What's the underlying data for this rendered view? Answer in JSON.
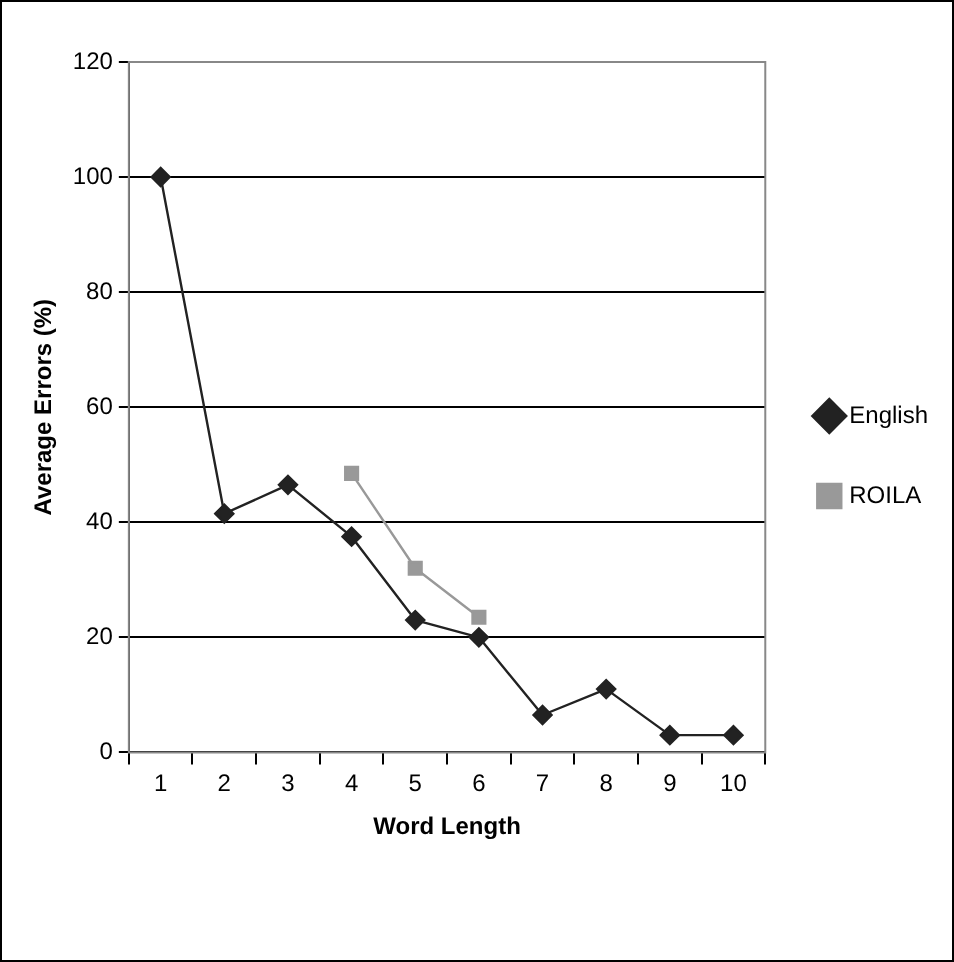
{
  "chart_data": {
    "type": "line",
    "xlabel": "Word Length",
    "ylabel": "Average Errors (%)",
    "categories": [
      "1",
      "2",
      "3",
      "4",
      "5",
      "6",
      "7",
      "8",
      "9",
      "10"
    ],
    "series": [
      {
        "name": "English",
        "color": "#222222",
        "marker": "diamond",
        "values": [
          100,
          41.5,
          46.5,
          37.5,
          23,
          20,
          6.5,
          11,
          3,
          3
        ]
      },
      {
        "name": "ROILA",
        "color": "#999999",
        "marker": "square",
        "values": [
          null,
          null,
          null,
          48.5,
          32,
          23.5,
          null,
          null,
          null,
          null
        ]
      }
    ],
    "ylim": [
      0,
      120
    ],
    "yticks": [
      0,
      20,
      40,
      60,
      80,
      100,
      120
    ],
    "grid": "y",
    "legend": "right"
  }
}
